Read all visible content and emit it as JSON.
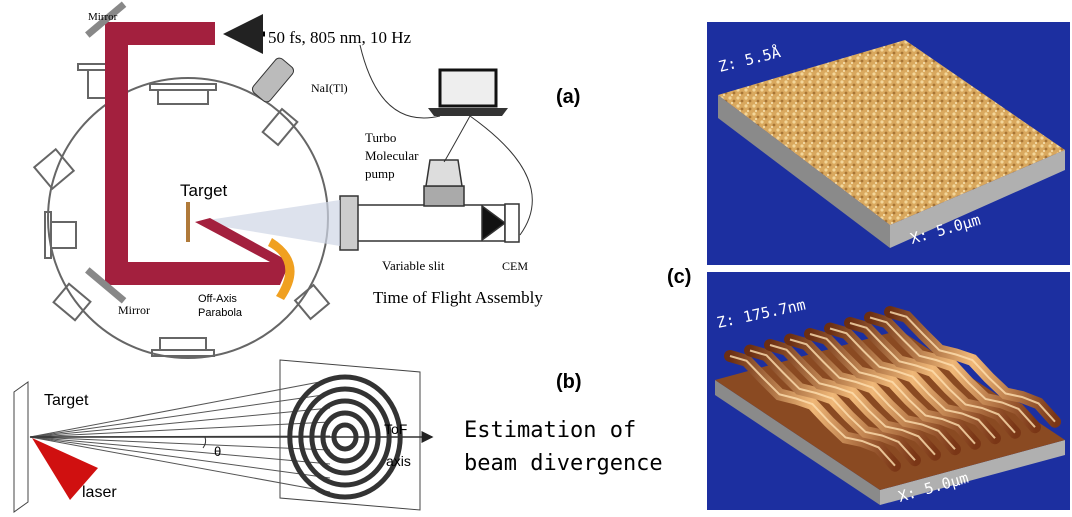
{
  "panel_a": {
    "label": "(a)",
    "mirror_top": "Mirror",
    "laser": "50 fs, 805 nm, 10 Hz",
    "detector": "NaI(Tl)",
    "pump": [
      "Turbo",
      "Molecular",
      "pump"
    ],
    "target": "Target",
    "slit": "Variable slit",
    "cem": "CEM",
    "tof": "Time of Flight Assembly",
    "mirror_bottom": "Mirror",
    "parabola": [
      "Off-Axis",
      "Parabola"
    ]
  },
  "panel_b": {
    "label": "(b)",
    "target": "Target",
    "theta": "θ",
    "axis": [
      "ToF",
      "axis"
    ],
    "laser": "laser",
    "caption": [
      "Estimation of",
      "beam divergence"
    ]
  },
  "panel_c": {
    "label": "(c)",
    "top": {
      "z": "Z: 5.5Å",
      "x": "X: 5.0µm"
    },
    "bottom": {
      "z": "Z: 175.7nm",
      "x": "X: 5.0µm"
    }
  }
}
